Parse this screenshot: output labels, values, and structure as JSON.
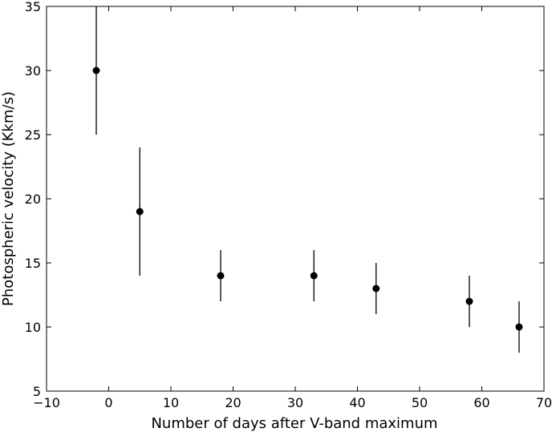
{
  "chart_data": {
    "type": "scatter",
    "title": "",
    "xlabel": "Number of days after V-band maximum",
    "ylabel": "Photospheric velocity (Kkm/s)",
    "xlim": [
      -10,
      70
    ],
    "ylim": [
      5,
      35
    ],
    "xticks": [
      -10,
      0,
      10,
      20,
      30,
      40,
      50,
      60,
      70
    ],
    "yticks": [
      5,
      10,
      15,
      20,
      25,
      30,
      35
    ],
    "xtick_labels": [
      "−10",
      "0",
      "10",
      "20",
      "30",
      "40",
      "50",
      "60",
      "70"
    ],
    "ytick_labels": [
      "5",
      "10",
      "15",
      "20",
      "25",
      "30",
      "35"
    ],
    "grid": false,
    "legend": "none",
    "marker_color": "#000000",
    "points": [
      {
        "x": -2,
        "y": 30,
        "yerr": 5
      },
      {
        "x": 5,
        "y": 19,
        "yerr": 5
      },
      {
        "x": 18,
        "y": 14,
        "yerr": 2
      },
      {
        "x": 33,
        "y": 14,
        "yerr": 2
      },
      {
        "x": 43,
        "y": 13,
        "yerr": 2
      },
      {
        "x": 58,
        "y": 12,
        "yerr": 2
      },
      {
        "x": 66,
        "y": 10,
        "yerr": 2
      }
    ]
  }
}
